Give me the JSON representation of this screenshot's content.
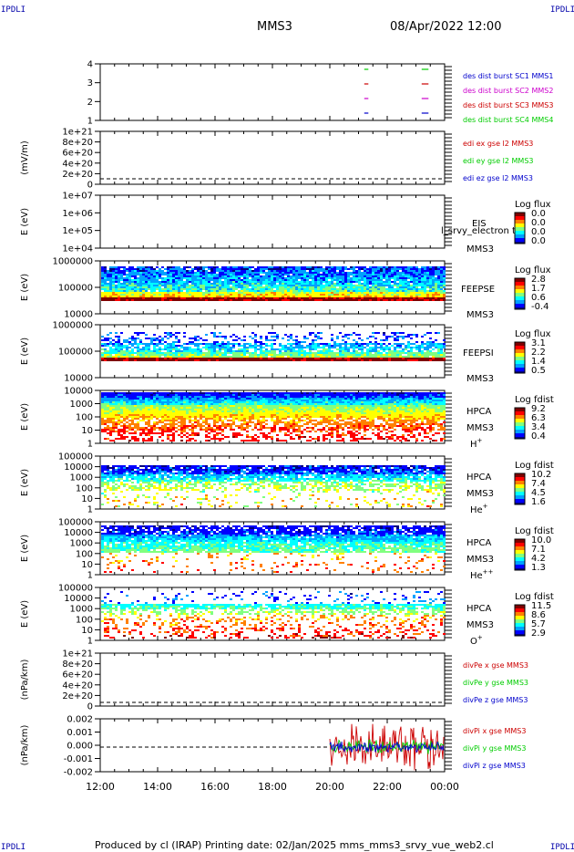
{
  "corner_marks": [
    "IPDLI",
    "IPDLI",
    "IPDLI",
    "IPDLI"
  ],
  "header": {
    "spacecraft": "MMS3",
    "datetime": "08/Apr/2022 12:00"
  },
  "footer": "Produced by cl (IRAP)   Printing date: 02/Jan/2025   mms_mms3_srvy_vue_web2.cl",
  "colors": {
    "blue": "#0000cc",
    "magenta": "#cc00cc",
    "red": "#cc0000",
    "green": "#00cc00",
    "colorbar": [
      "#000080",
      "#0000ff",
      "#00a0ff",
      "#00ffff",
      "#80ff80",
      "#ffff00",
      "#ff8000",
      "#ff0000",
      "#800000"
    ]
  },
  "chart_data": [
    {
      "id": "burst",
      "type": "scatter",
      "yticks": [
        "4",
        "3",
        "2",
        "1"
      ],
      "xlim": [
        "12:00",
        "00:00"
      ],
      "legend": [
        {
          "label": "des dist burst SC1 MMS1",
          "color": "#0000cc"
        },
        {
          "label": "des dist burst SC2 MMS2",
          "color": "#cc00cc"
        },
        {
          "label": "des dist burst SC3 MMS3",
          "color": "#cc0000"
        },
        {
          "label": "des dist burst SC4 MMS4",
          "color": "#00cc00"
        }
      ],
      "bursts": [
        {
          "sc": 4,
          "t": 21.2,
          "len": 0.15
        },
        {
          "sc": 3,
          "t": 21.2,
          "len": 0.15
        },
        {
          "sc": 2,
          "t": 21.2,
          "len": 0.15
        },
        {
          "sc": 1,
          "t": 21.2,
          "len": 0.15
        },
        {
          "sc": 4,
          "t": 23.2,
          "len": 0.25
        },
        {
          "sc": 3,
          "t": 23.2,
          "len": 0.25
        },
        {
          "sc": 2,
          "t": 23.2,
          "len": 0.25
        },
        {
          "sc": 1,
          "t": 23.2,
          "len": 0.25
        }
      ]
    },
    {
      "id": "edi",
      "type": "line",
      "ylabel": "(mV/m)",
      "yticks": [
        "1e+21",
        "8e+20",
        "6e+20",
        "4e+20",
        "2e+20",
        "0"
      ],
      "legend": [
        {
          "label": "edi ex gse l2 MMS3",
          "color": "#cc0000"
        },
        {
          "label": "edi ey gse l2 MMS3",
          "color": "#00cc00"
        },
        {
          "label": "edi ez gse l2 MMS3",
          "color": "#0000cc"
        }
      ]
    },
    {
      "id": "eis",
      "type": "heatmap",
      "ylabel": "E (eV)",
      "yticks": [
        "1e+07",
        "1e+06",
        "1e+05",
        "1e+04"
      ],
      "labels": [
        "EIS",
        "MMS3"
      ],
      "overlay_label": "l_srvy_electron to",
      "cb_title": "Log flux",
      "cb_ticks": [
        "0.0",
        "0.0",
        "0.0",
        "0.0"
      ]
    },
    {
      "id": "feepse",
      "type": "heatmap",
      "ylabel": "E (eV)",
      "yticks": [
        "1000000",
        "100000",
        "10000"
      ],
      "labels": [
        "FEEPSE",
        "MMS3"
      ],
      "cb_title": "Log flux",
      "cb_ticks": [
        "2.8",
        "1.7",
        "0.6",
        "-0.4"
      ]
    },
    {
      "id": "feepsi",
      "type": "heatmap",
      "ylabel": "E (eV)",
      "yticks": [
        "1000000",
        "100000",
        "10000"
      ],
      "labels": [
        "FEEPSI",
        "MMS3"
      ],
      "cb_title": "Log flux",
      "cb_ticks": [
        "3.1",
        "2.2",
        "1.4",
        "0.5"
      ]
    },
    {
      "id": "hpca_h",
      "type": "heatmap",
      "ylabel": "E (eV)",
      "yticks": [
        "10000",
        "1000",
        "100",
        "10",
        "1"
      ],
      "labels": [
        "HPCA",
        "MMS3"
      ],
      "species": "H",
      "species_sup": "+",
      "cb_title": "Log fdist",
      "cb_ticks": [
        "9.2",
        "6.3",
        "3.4",
        "0.4"
      ]
    },
    {
      "id": "hpca_he",
      "type": "heatmap",
      "ylabel": "E (eV)",
      "yticks": [
        "100000",
        "10000",
        "1000",
        "100",
        "10",
        "1"
      ],
      "labels": [
        "HPCA",
        "MMS3"
      ],
      "species": "He",
      "species_sup": "+",
      "cb_title": "Log fdist",
      "cb_ticks": [
        "10.2",
        "7.4",
        "4.5",
        "1.6"
      ]
    },
    {
      "id": "hpca_hepp",
      "type": "heatmap",
      "ylabel": "E (eV)",
      "yticks": [
        "100000",
        "10000",
        "1000",
        "100",
        "10",
        "1"
      ],
      "labels": [
        "HPCA",
        "MMS3"
      ],
      "species": "He",
      "species_sup": "++",
      "cb_title": "Log fdist",
      "cb_ticks": [
        "10.0",
        "7.1",
        "4.2",
        "1.3"
      ]
    },
    {
      "id": "hpca_o",
      "type": "heatmap",
      "ylabel": "E (eV)",
      "yticks": [
        "100000",
        "10000",
        "1000",
        "100",
        "10",
        "1"
      ],
      "labels": [
        "HPCA",
        "MMS3"
      ],
      "species": "O",
      "species_sup": "+",
      "cb_title": "Log fdist",
      "cb_ticks": [
        "11.5",
        "8.6",
        "5.7",
        "2.9"
      ]
    },
    {
      "id": "divpe",
      "type": "line",
      "ylabel": "(nPa/km)",
      "yticks": [
        "1e+21",
        "8e+20",
        "6e+20",
        "4e+20",
        "2e+20",
        "0"
      ],
      "legend": [
        {
          "label": "divPe x gse MMS3",
          "color": "#cc0000"
        },
        {
          "label": "divPe y gse MMS3",
          "color": "#00cc00"
        },
        {
          "label": "divPe z gse MMS3",
          "color": "#0000cc"
        }
      ]
    },
    {
      "id": "divpi",
      "type": "line",
      "ylabel": "(nPa/km)",
      "yticks": [
        "0.002",
        "0.001",
        "0.000",
        "-0.001",
        "-0.002"
      ],
      "ylim": [
        -0.0025,
        0.0025
      ],
      "data_start": "20:00",
      "legend": [
        {
          "label": "divPi x gse MMS3",
          "color": "#cc0000"
        },
        {
          "label": "divPi y gse MMS3",
          "color": "#00cc00"
        },
        {
          "label": "divPi z gse MMS3",
          "color": "#0000cc"
        }
      ]
    }
  ],
  "xaxis": {
    "ticks": [
      "12:00",
      "14:00",
      "16:00",
      "18:00",
      "20:00",
      "22:00",
      "00:00"
    ]
  }
}
